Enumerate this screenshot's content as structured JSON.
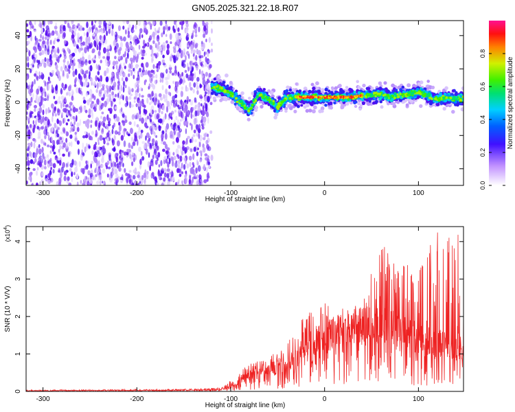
{
  "title": "GN05.2025.321.22.18.R07",
  "chart_data": [
    {
      "type": "heatmap",
      "panel": "spectrogram",
      "xlabel": "Height of straight line (km)",
      "ylabel": "Frequency (Hz)",
      "xlim": [
        -318,
        148
      ],
      "ylim": [
        -50,
        49
      ],
      "xticks": [
        -300,
        -200,
        -100,
        0,
        100
      ],
      "xtick_labels": [
        "-300",
        "-200",
        "-100",
        "0",
        "100"
      ],
      "yticks": [
        -40,
        -20,
        0,
        20,
        40
      ],
      "ytick_labels": [
        "-40",
        "-20",
        "0",
        "20",
        "40"
      ],
      "noise_region_x": [
        -318,
        -120
      ],
      "signal_track": {
        "x": [
          -120,
          -110,
          -100,
          -90,
          -80,
          -70,
          -60,
          -50,
          -40,
          -30,
          -20,
          -10,
          0,
          10,
          20,
          30,
          40,
          50,
          60,
          70,
          80,
          90,
          100,
          110,
          120,
          130,
          140,
          148
        ],
        "freq": [
          9,
          8,
          5,
          0,
          -5,
          5,
          2,
          -3,
          3,
          3,
          3,
          3,
          3,
          3,
          3,
          3,
          4,
          4,
          5,
          3,
          4,
          5,
          6,
          4,
          2,
          3,
          2,
          2
        ]
      },
      "colorbar": {
        "label": "Normalized spectral amplitude",
        "range": [
          0,
          1
        ],
        "ticks": [
          0.0,
          0.2,
          0.4,
          0.6,
          0.8
        ],
        "tick_labels": [
          "0.0",
          "0.2",
          "0.4",
          "0.6",
          "0.8"
        ]
      }
    },
    {
      "type": "line",
      "panel": "snr",
      "xlabel": "Height of straight line (km)",
      "ylabel": "SNR (10 * V/V)",
      "multiplier": "(x10",
      "multiplier_exp": "4",
      "xlim": [
        -318,
        148
      ],
      "ylim": [
        0,
        4.4
      ],
      "xticks": [
        -300,
        -200,
        -100,
        0,
        100
      ],
      "xtick_labels": [
        "-300",
        "-200",
        "-100",
        "0",
        "100"
      ],
      "yticks": [
        0,
        1,
        2,
        3,
        4
      ],
      "ytick_labels": [
        "0",
        "1",
        "2",
        "3",
        "4"
      ],
      "color": "#ee2222",
      "envelope": {
        "x": [
          -318,
          -150,
          -110,
          -100,
          -80,
          -60,
          -40,
          -20,
          0,
          20,
          40,
          60,
          80,
          100,
          120,
          148
        ],
        "mean": [
          0.02,
          0.03,
          0.05,
          0.12,
          0.45,
          0.55,
          0.8,
          1.0,
          1.35,
          1.75,
          1.9,
          1.8,
          1.65,
          1.45,
          1.3,
          1.2
        ],
        "peak": [
          0.04,
          0.06,
          0.1,
          0.3,
          0.75,
          0.9,
          1.3,
          2.1,
          2.4,
          1.9,
          2.3,
          4.2,
          3.4,
          3.4,
          4.3,
          4.3
        ]
      }
    }
  ]
}
